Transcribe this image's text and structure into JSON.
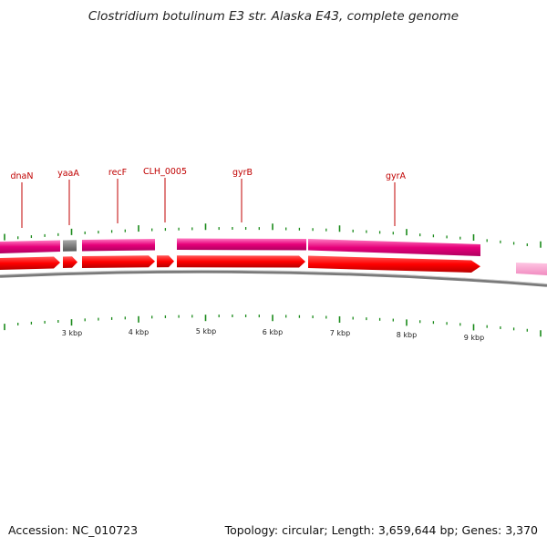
{
  "title": "Clostridium botulinum E3 str. Alaska E43, complete genome",
  "accession": "Accession: NC_010723",
  "summary": "Topology: circular; Length: 3,659,644 bp; Genes: 3,370",
  "gene_labels": [
    "dnaN",
    "yaaA",
    "recF",
    "CLH_0005",
    "gyrB",
    "gyrA"
  ],
  "kbp_labels": [
    "3 kbp",
    "4 kbp",
    "5 kbp",
    "6 kbp",
    "7 kbp",
    "8 kbp",
    "9 kbp"
  ],
  "colors": {
    "cds_forward": "#ff0000",
    "feature_track": "#e6007a",
    "feature_track_light": "#f7a6cf",
    "backbone": "#888888",
    "ticks": "#1a8a1a",
    "label": "#c00000"
  }
}
